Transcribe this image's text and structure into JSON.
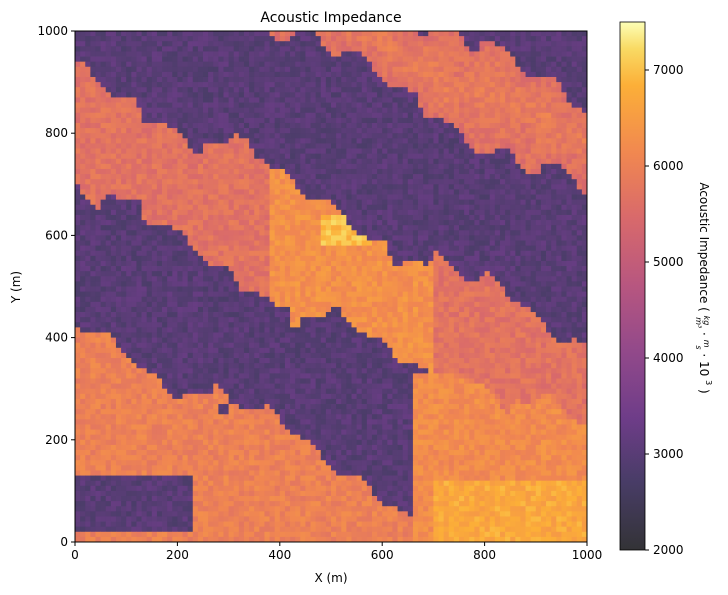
{
  "chart_data": {
    "type": "heatmap",
    "title": "Acoustic Impedance",
    "xlabel": "X (m)",
    "ylabel": "Y (m)",
    "xlim": [
      0,
      1000
    ],
    "ylim": [
      0,
      1000
    ],
    "xticks": [
      "0",
      "200",
      "400",
      "600",
      "800",
      "1000"
    ],
    "yticks": [
      "0",
      "200",
      "400",
      "600",
      "800",
      "1000"
    ],
    "grid": false,
    "grid_size": [
      100,
      100
    ],
    "colormap": "inferno (alpha ~0.8)",
    "colorbar": {
      "label": "Acoustic Impedance (kg/m³ · m/s · 10³)",
      "label_parts": {
        "main": "Acoustic Impedance (",
        "frac1_num": "kg",
        "frac1_den": "m³",
        "frac2_num": "m",
        "frac2_den": "s",
        "factor": "10",
        "exp": "3",
        "close": ")"
      },
      "range": [
        2000,
        7500
      ],
      "ticks": [
        "2000",
        "3000",
        "4000",
        "5000",
        "6000",
        "7000"
      ]
    },
    "bands_description": [
      {
        "region": "upper-left diagonal band",
        "level": "high",
        "approx_value": 5800
      },
      {
        "region": "central diagonal band",
        "level": "very high",
        "approx_value": 6500
      },
      {
        "region": "lower-left and lower-right fan",
        "level": "high",
        "approx_value": 6100
      },
      {
        "region": "between bands",
        "level": "low",
        "approx_value": 3000
      }
    ]
  }
}
